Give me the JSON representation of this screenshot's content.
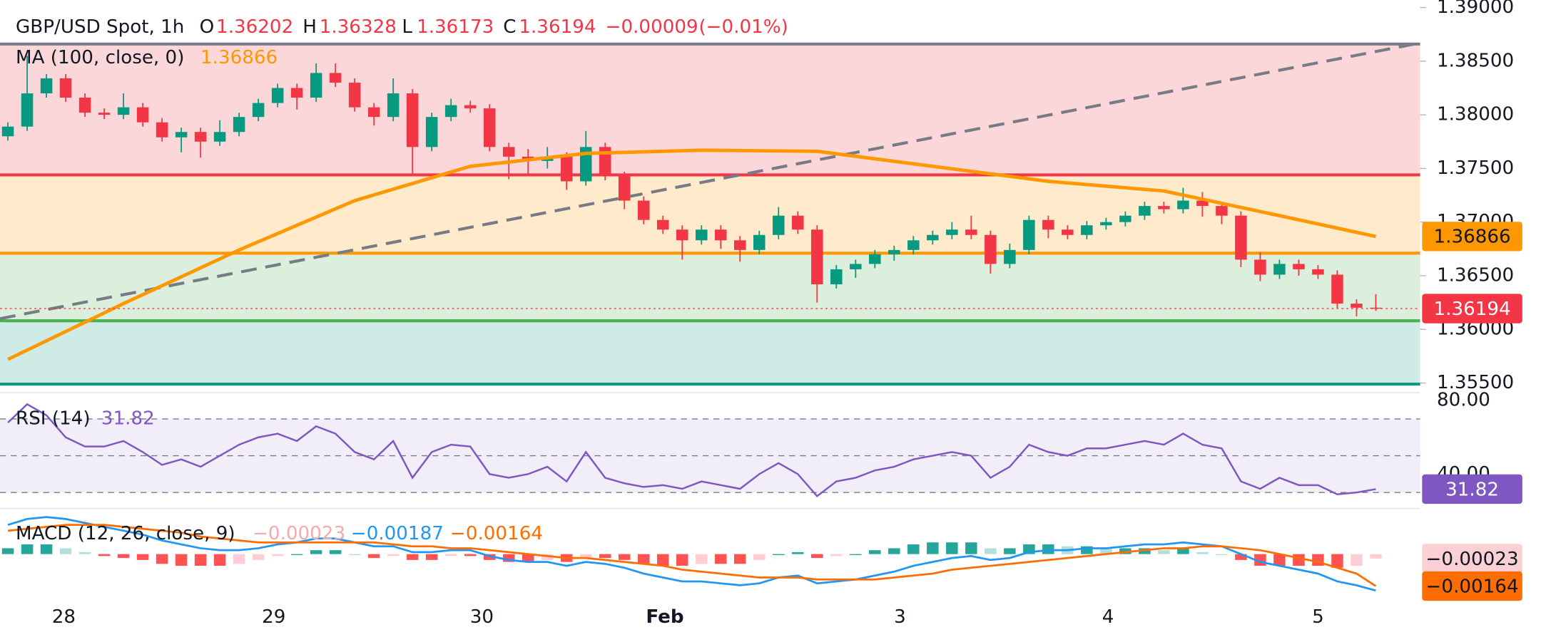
{
  "chart_data": {
    "type": "candlestick",
    "title": "GBP/USD Spot, 1h",
    "ohlc_labels": [
      "O",
      "H",
      "L",
      "C"
    ],
    "change": "−0.00009",
    "change_pct": "(−0.01%)",
    "up_color": "#089981",
    "down_color": "#f23645",
    "xlim": [
      -0.41,
      73.3
    ],
    "xticks": [
      {
        "value": 2.9,
        "label": "28"
      },
      {
        "value": 13.8,
        "label": "29"
      },
      {
        "value": 24.6,
        "label": "30"
      },
      {
        "value": 34.1,
        "label": "Feb"
      },
      {
        "value": 46.3,
        "label": "3"
      },
      {
        "value": 57.1,
        "label": "4"
      },
      {
        "value": 68.0,
        "label": "5"
      }
    ],
    "ylim": [
      1.3541,
      1.3907
    ],
    "yticks": [
      {
        "value": 1.355,
        "label": "1.35500"
      },
      {
        "value": 1.36,
        "label": "1.36000"
      },
      {
        "value": 1.365,
        "label": "1.36500"
      },
      {
        "value": 1.37,
        "label": "1.37000"
      },
      {
        "value": 1.375,
        "label": "1.37500"
      },
      {
        "value": 1.38,
        "label": "1.38000"
      },
      {
        "value": 1.385,
        "label": "1.38500"
      },
      {
        "value": 1.39,
        "label": "1.39000"
      }
    ],
    "candles": {
      "open": [
        1.378,
        1.3789,
        1.382,
        1.3834,
        1.3816,
        1.3802,
        1.38,
        1.3807,
        1.3793,
        1.3779,
        1.3784,
        1.3775,
        1.3784,
        1.3798,
        1.3811,
        1.3825,
        1.3816,
        1.3839,
        1.383,
        1.3807,
        1.3798,
        1.382,
        1.377,
        1.3798,
        1.3809,
        1.3806,
        1.377,
        1.3761,
        1.3757,
        1.3761,
        1.3738,
        1.377,
        1.3743,
        1.372,
        1.3702,
        1.3693,
        1.3683,
        1.3693,
        1.3683,
        1.3674,
        1.3688,
        1.3706,
        1.3693,
        1.3642,
        1.3656,
        1.3661,
        1.367,
        1.3674,
        1.3683,
        1.3688,
        1.3693,
        1.3688,
        1.3661,
        1.3674,
        1.3702,
        1.3693,
        1.3688,
        1.3697,
        1.37,
        1.3706,
        1.3715,
        1.3712,
        1.372,
        1.3715,
        1.3706,
        1.3665,
        1.3651,
        1.3661,
        1.3656,
        1.3651,
        1.3624,
        1.36202
      ],
      "high": [
        1.3793,
        1.3855,
        1.3838,
        1.3838,
        1.382,
        1.3806,
        1.382,
        1.3811,
        1.3797,
        1.3788,
        1.3788,
        1.3795,
        1.3802,
        1.3815,
        1.3829,
        1.3829,
        1.3848,
        1.3848,
        1.3834,
        1.3811,
        1.3834,
        1.3824,
        1.3802,
        1.3815,
        1.3813,
        1.381,
        1.3774,
        1.3768,
        1.377,
        1.3765,
        1.3785,
        1.3774,
        1.3747,
        1.3724,
        1.3706,
        1.3697,
        1.3697,
        1.3697,
        1.3687,
        1.3692,
        1.3714,
        1.371,
        1.3697,
        1.366,
        1.3665,
        1.3674,
        1.3678,
        1.3687,
        1.3692,
        1.37,
        1.3706,
        1.3692,
        1.368,
        1.3706,
        1.3706,
        1.3697,
        1.3701,
        1.3704,
        1.371,
        1.3719,
        1.3719,
        1.3732,
        1.3728,
        1.3719,
        1.371,
        1.3672,
        1.3665,
        1.3665,
        1.366,
        1.3655,
        1.3628,
        1.36328
      ],
      "low": [
        1.3776,
        1.3785,
        1.3816,
        1.3812,
        1.3798,
        1.3796,
        1.3796,
        1.3789,
        1.3775,
        1.3765,
        1.376,
        1.3771,
        1.378,
        1.3794,
        1.3807,
        1.3805,
        1.3812,
        1.3826,
        1.3803,
        1.379,
        1.3794,
        1.3745,
        1.3766,
        1.3794,
        1.3802,
        1.3766,
        1.374,
        1.3745,
        1.375,
        1.373,
        1.3734,
        1.3739,
        1.3712,
        1.3698,
        1.3689,
        1.3665,
        1.3679,
        1.3675,
        1.3663,
        1.367,
        1.3684,
        1.3689,
        1.3625,
        1.3638,
        1.3648,
        1.3657,
        1.3664,
        1.367,
        1.3679,
        1.3684,
        1.3684,
        1.3652,
        1.3657,
        1.367,
        1.3685,
        1.3684,
        1.3684,
        1.3693,
        1.3696,
        1.3702,
        1.3708,
        1.3708,
        1.3705,
        1.3698,
        1.3658,
        1.3645,
        1.3647,
        1.365,
        1.3647,
        1.362,
        1.3612,
        1.36173
      ],
      "close": [
        1.3789,
        1.382,
        1.3834,
        1.3816,
        1.3802,
        1.38,
        1.3807,
        1.3793,
        1.3779,
        1.3784,
        1.3775,
        1.3784,
        1.3798,
        1.3811,
        1.3825,
        1.3816,
        1.3839,
        1.383,
        1.3807,
        1.3798,
        1.382,
        1.377,
        1.3798,
        1.3809,
        1.3806,
        1.377,
        1.3761,
        1.3757,
        1.3761,
        1.3738,
        1.377,
        1.3743,
        1.372,
        1.3702,
        1.3693,
        1.3683,
        1.3693,
        1.3683,
        1.3674,
        1.3688,
        1.3706,
        1.3693,
        1.3642,
        1.3656,
        1.3661,
        1.367,
        1.3674,
        1.3683,
        1.3688,
        1.3693,
        1.3688,
        1.3661,
        1.3674,
        1.3702,
        1.3693,
        1.3688,
        1.3697,
        1.37,
        1.3706,
        1.3715,
        1.3712,
        1.372,
        1.3715,
        1.3706,
        1.3665,
        1.3651,
        1.3661,
        1.3656,
        1.3651,
        1.3624,
        1.36202,
        1.36194
      ]
    },
    "ma": {
      "name": "MA (100, close, 0)",
      "color": "#ff9800",
      "x": [
        0,
        6,
        12,
        18,
        24,
        30,
        36,
        42,
        48,
        54,
        60,
        66,
        71
      ],
      "values": [
        1.3572,
        1.3624,
        1.3674,
        1.372,
        1.3752,
        1.3764,
        1.3767,
        1.3766,
        1.3752,
        1.3738,
        1.3729,
        1.3706,
        1.36866
      ]
    },
    "trendline": {
      "color": "#787b86",
      "start": [
        -0.41,
        1.361
      ],
      "end": [
        73.3,
        1.3867
      ]
    },
    "levels": [
      {
        "value": 1.3866,
        "color": "#787b86"
      },
      {
        "value": 1.3744,
        "color": "#f23645"
      },
      {
        "value": 1.3671,
        "color": "#ff9800"
      },
      {
        "value": 1.3608,
        "color": "#4caf50"
      },
      {
        "value": 1.3549,
        "color": "#089981"
      }
    ],
    "rsi": {
      "name": "RSI (14)",
      "color": "#7e57c2",
      "ylim": [
        22.9,
        84.3
      ],
      "yticks": [
        {
          "value": 80,
          "label": "80.00"
        },
        {
          "value": 40,
          "label": "40.00"
        }
      ],
      "levels": [
        70,
        50,
        30
      ],
      "values": [
        68,
        78,
        72,
        60,
        55,
        55,
        58,
        52,
        45,
        48,
        44,
        50,
        56,
        60,
        62,
        58,
        66,
        62,
        52,
        48,
        58,
        38,
        52,
        56,
        55,
        40,
        38,
        40,
        44,
        36,
        52,
        38,
        35,
        33,
        34,
        32,
        36,
        34,
        32,
        40,
        46,
        40,
        28,
        36,
        38,
        42,
        44,
        48,
        50,
        52,
        50,
        38,
        44,
        56,
        52,
        50,
        54,
        54,
        56,
        58,
        56,
        62,
        56,
        54,
        36,
        32,
        38,
        34,
        34,
        29,
        30,
        31.82
      ]
    },
    "macd": {
      "name": "MACD (12, 26, close, 9)",
      "ylim": [
        -0.00204,
        0.00224
      ],
      "histogram": {
        "colors": [
          "#26a69a",
          "#b2dfdb",
          "#ff5252",
          "#ffcdd2"
        ],
        "value_label": "−0.00023",
        "values": [
          0.0003,
          0.0005,
          0.0005,
          0.0003,
          0.0001,
          -0.0001,
          -0.0002,
          -0.0003,
          -0.0005,
          -0.0006,
          -0.0006,
          -0.0006,
          -0.0005,
          -0.0003,
          -0.0001,
          0.0,
          0.0002,
          0.0002,
          0.0,
          -0.0002,
          -0.0001,
          -0.0003,
          -0.0003,
          -0.0001,
          -0.0001,
          -0.0003,
          -0.0004,
          -0.0004,
          -0.0003,
          -0.0004,
          -0.0002,
          -0.0002,
          -0.0003,
          -0.0005,
          -0.0006,
          -0.0006,
          -0.0005,
          -0.0005,
          -0.0005,
          -0.0003,
          0.0,
          0.0001,
          -0.0002,
          -0.0001,
          0.0,
          0.0002,
          0.0003,
          0.0005,
          0.0006,
          0.0006,
          0.0006,
          0.0003,
          0.0003,
          0.0005,
          0.0005,
          0.0004,
          0.0004,
          0.0003,
          0.0003,
          0.0003,
          0.0002,
          0.0003,
          0.0001,
          0.0,
          -0.0003,
          -0.0006,
          -0.0006,
          -0.0006,
          -0.0006,
          -0.0007,
          -0.0006,
          -0.00023
        ]
      },
      "macd": {
        "color": "#2196f3",
        "value_label": "−0.00187",
        "values": [
          0.0015,
          0.0018,
          0.0019,
          0.0018,
          0.0016,
          0.0014,
          0.0012,
          0.001,
          0.0007,
          0.0005,
          0.0003,
          0.0002,
          0.0002,
          0.0003,
          0.0005,
          0.0006,
          0.0008,
          0.0008,
          0.0006,
          0.0004,
          0.0004,
          0.0001,
          0.0001,
          0.0002,
          0.0002,
          -0.0001,
          -0.0003,
          -0.0004,
          -0.0004,
          -0.0006,
          -0.0004,
          -0.0005,
          -0.0007,
          -0.001,
          -0.0012,
          -0.0014,
          -0.0014,
          -0.0015,
          -0.0016,
          -0.0015,
          -0.0012,
          -0.0011,
          -0.0015,
          -0.0014,
          -0.0013,
          -0.0011,
          -0.0009,
          -0.0006,
          -0.0004,
          -0.0002,
          -0.0001,
          -0.0003,
          -0.0002,
          0.0001,
          0.0002,
          0.0002,
          0.0003,
          0.0003,
          0.0004,
          0.0005,
          0.0005,
          0.0006,
          0.0005,
          0.0004,
          0.0,
          -0.0004,
          -0.0006,
          -0.0008,
          -0.001,
          -0.0014,
          -0.0016,
          -0.00187
        ]
      },
      "signal": {
        "color": "#ff6d00",
        "value_label": "−0.00164",
        "values": [
          0.0012,
          0.0013,
          0.0014,
          0.0015,
          0.0015,
          0.0015,
          0.0014,
          0.0013,
          0.0012,
          0.0011,
          0.0009,
          0.0008,
          0.0007,
          0.0006,
          0.0006,
          0.0006,
          0.0006,
          0.0006,
          0.0006,
          0.0006,
          0.0005,
          0.0004,
          0.0004,
          0.0003,
          0.0003,
          0.0002,
          0.0001,
          0.0,
          -0.0001,
          -0.0002,
          -0.0002,
          -0.0003,
          -0.0004,
          -0.0005,
          -0.0006,
          -0.0008,
          -0.0009,
          -0.001,
          -0.0011,
          -0.0012,
          -0.0012,
          -0.0012,
          -0.0013,
          -0.0013,
          -0.0013,
          -0.0013,
          -0.0012,
          -0.0011,
          -0.001,
          -0.0008,
          -0.0007,
          -0.0006,
          -0.0005,
          -0.0004,
          -0.0003,
          -0.0002,
          -0.0001,
          0.0,
          0.0001,
          0.0002,
          0.0003,
          0.0003,
          0.0004,
          0.0004,
          0.0003,
          0.0002,
          0.0,
          -0.0002,
          -0.0004,
          -0.0007,
          -0.001,
          -0.00164
        ]
      }
    }
  }
}
